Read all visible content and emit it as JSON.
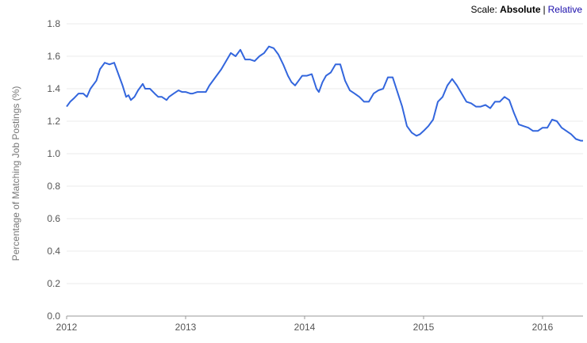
{
  "scale_bar": {
    "prefix": "Scale:",
    "options": [
      "Absolute",
      "Relative"
    ],
    "selected": "Absolute",
    "separator": "|"
  },
  "chart_data": {
    "type": "line",
    "title": "",
    "ylabel": "Percentage of Matching Job Postings (%)",
    "xlabel": "",
    "ylim": [
      0,
      1.8
    ],
    "xlim": [
      2012.0,
      2016.34
    ],
    "yticks": [
      "0.0",
      "0.2",
      "0.4",
      "0.6",
      "0.8",
      "1.0",
      "1.2",
      "1.4",
      "1.6",
      "1.8"
    ],
    "xticks": [
      "2012",
      "2013",
      "2014",
      "2015",
      "2016"
    ],
    "grid": true,
    "line_color": "#3366dd",
    "series": [
      {
        "values": [
          [
            2012.0,
            1.29
          ],
          [
            2012.03,
            1.32
          ],
          [
            2012.06,
            1.34
          ],
          [
            2012.1,
            1.37
          ],
          [
            2012.14,
            1.37
          ],
          [
            2012.17,
            1.35
          ],
          [
            2012.2,
            1.4
          ],
          [
            2012.25,
            1.45
          ],
          [
            2012.28,
            1.52
          ],
          [
            2012.32,
            1.56
          ],
          [
            2012.36,
            1.55
          ],
          [
            2012.4,
            1.56
          ],
          [
            2012.44,
            1.48
          ],
          [
            2012.47,
            1.42
          ],
          [
            2012.5,
            1.35
          ],
          [
            2012.52,
            1.36
          ],
          [
            2012.54,
            1.33
          ],
          [
            2012.57,
            1.35
          ],
          [
            2012.6,
            1.39
          ],
          [
            2012.64,
            1.43
          ],
          [
            2012.66,
            1.4
          ],
          [
            2012.7,
            1.4
          ],
          [
            2012.74,
            1.37
          ],
          [
            2012.77,
            1.35
          ],
          [
            2012.8,
            1.35
          ],
          [
            2012.84,
            1.33
          ],
          [
            2012.86,
            1.35
          ],
          [
            2012.9,
            1.37
          ],
          [
            2012.94,
            1.39
          ],
          [
            2012.97,
            1.38
          ],
          [
            2013.0,
            1.38
          ],
          [
            2013.04,
            1.37
          ],
          [
            2013.06,
            1.37
          ],
          [
            2013.1,
            1.38
          ],
          [
            2013.14,
            1.38
          ],
          [
            2013.17,
            1.38
          ],
          [
            2013.2,
            1.42
          ],
          [
            2013.25,
            1.47
          ],
          [
            2013.3,
            1.52
          ],
          [
            2013.34,
            1.57
          ],
          [
            2013.38,
            1.62
          ],
          [
            2013.42,
            1.6
          ],
          [
            2013.46,
            1.64
          ],
          [
            2013.5,
            1.58
          ],
          [
            2013.54,
            1.58
          ],
          [
            2013.58,
            1.57
          ],
          [
            2013.62,
            1.6
          ],
          [
            2013.66,
            1.62
          ],
          [
            2013.7,
            1.66
          ],
          [
            2013.74,
            1.65
          ],
          [
            2013.78,
            1.61
          ],
          [
            2013.82,
            1.55
          ],
          [
            2013.86,
            1.48
          ],
          [
            2013.89,
            1.44
          ],
          [
            2013.92,
            1.42
          ],
          [
            2013.95,
            1.45
          ],
          [
            2013.98,
            1.48
          ],
          [
            2014.02,
            1.48
          ],
          [
            2014.06,
            1.49
          ],
          [
            2014.1,
            1.4
          ],
          [
            2014.12,
            1.38
          ],
          [
            2014.15,
            1.44
          ],
          [
            2014.18,
            1.48
          ],
          [
            2014.22,
            1.5
          ],
          [
            2014.26,
            1.55
          ],
          [
            2014.3,
            1.55
          ],
          [
            2014.34,
            1.45
          ],
          [
            2014.38,
            1.39
          ],
          [
            2014.42,
            1.37
          ],
          [
            2014.46,
            1.35
          ],
          [
            2014.5,
            1.32
          ],
          [
            2014.54,
            1.32
          ],
          [
            2014.58,
            1.37
          ],
          [
            2014.62,
            1.39
          ],
          [
            2014.66,
            1.4
          ],
          [
            2014.7,
            1.47
          ],
          [
            2014.74,
            1.47
          ],
          [
            2014.78,
            1.38
          ],
          [
            2014.82,
            1.29
          ],
          [
            2014.86,
            1.17
          ],
          [
            2014.9,
            1.13
          ],
          [
            2014.94,
            1.11
          ],
          [
            2014.97,
            1.12
          ],
          [
            2015.0,
            1.14
          ],
          [
            2015.04,
            1.17
          ],
          [
            2015.08,
            1.21
          ],
          [
            2015.12,
            1.32
          ],
          [
            2015.16,
            1.35
          ],
          [
            2015.2,
            1.42
          ],
          [
            2015.24,
            1.46
          ],
          [
            2015.28,
            1.42
          ],
          [
            2015.32,
            1.37
          ],
          [
            2015.36,
            1.32
          ],
          [
            2015.4,
            1.31
          ],
          [
            2015.44,
            1.29
          ],
          [
            2015.48,
            1.29
          ],
          [
            2015.52,
            1.3
          ],
          [
            2015.56,
            1.28
          ],
          [
            2015.6,
            1.32
          ],
          [
            2015.64,
            1.32
          ],
          [
            2015.68,
            1.35
          ],
          [
            2015.72,
            1.33
          ],
          [
            2015.76,
            1.25
          ],
          [
            2015.8,
            1.18
          ],
          [
            2015.84,
            1.17
          ],
          [
            2015.88,
            1.16
          ],
          [
            2015.92,
            1.14
          ],
          [
            2015.96,
            1.14
          ],
          [
            2016.0,
            1.16
          ],
          [
            2016.04,
            1.16
          ],
          [
            2016.08,
            1.21
          ],
          [
            2016.12,
            1.2
          ],
          [
            2016.16,
            1.16
          ],
          [
            2016.2,
            1.14
          ],
          [
            2016.24,
            1.12
          ],
          [
            2016.28,
            1.09
          ],
          [
            2016.32,
            1.08
          ],
          [
            2016.34,
            1.08
          ]
        ]
      }
    ]
  }
}
